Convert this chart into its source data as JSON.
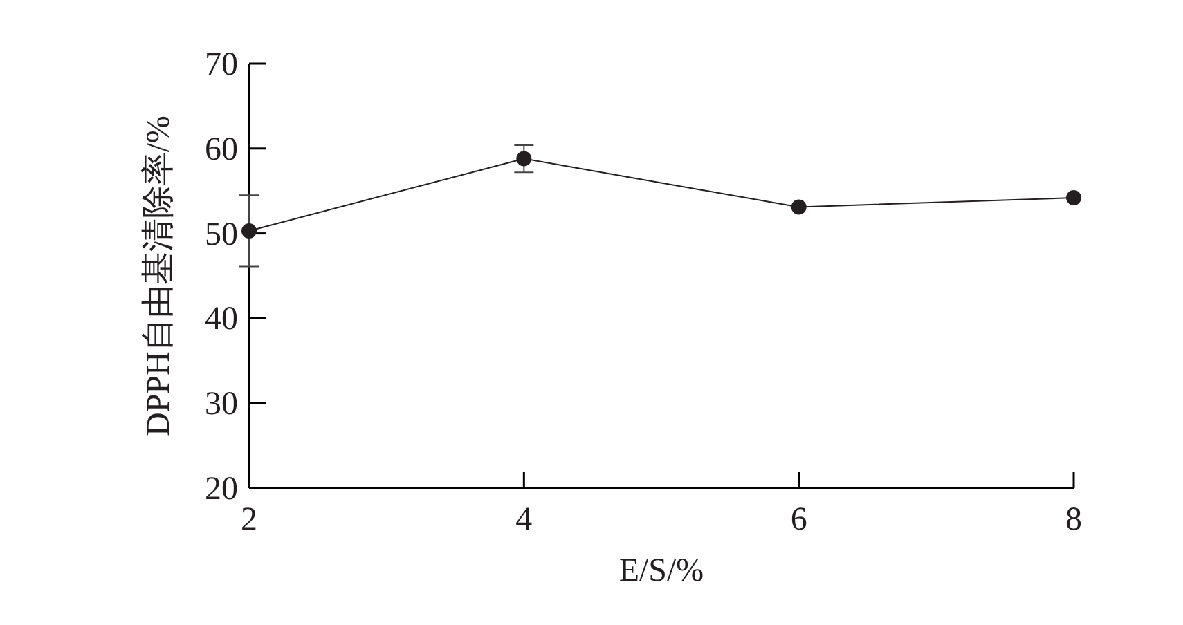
{
  "chart_data": {
    "type": "line",
    "xlabel": "E/S/%",
    "ylabel": "DPPH自由基清除率/%",
    "x": [
      2,
      4,
      6,
      8
    ],
    "series": [
      {
        "color": "#231f20",
        "values": [
          50.3,
          58.8,
          53.1,
          54.2
        ],
        "errors": [
          4.2,
          1.6,
          null,
          null
        ]
      }
    ],
    "xlim": [
      2,
      8
    ],
    "ylim": [
      20,
      70
    ],
    "xticks": [
      2,
      4,
      6,
      8
    ],
    "yticks": [
      20,
      30,
      40,
      50,
      60,
      70
    ],
    "marker": "circle",
    "line_style": "solid",
    "grid": false
  }
}
